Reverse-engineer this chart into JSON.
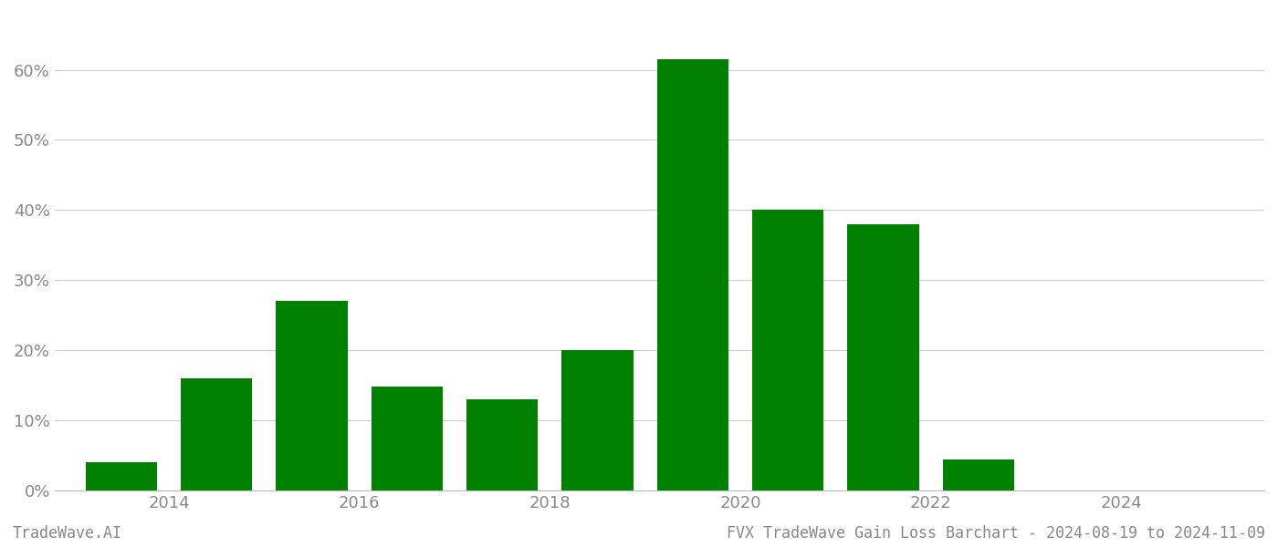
{
  "years": [
    2013,
    2014,
    2015,
    2016,
    2017,
    2018,
    2019,
    2020,
    2021,
    2022,
    2023
  ],
  "values": [
    0.04,
    0.16,
    0.27,
    0.148,
    0.13,
    0.2,
    0.615,
    0.4,
    0.38,
    0.045,
    0.0
  ],
  "bar_color": "#008000",
  "background_color": "#ffffff",
  "grid_color": "#cccccc",
  "tick_label_color": "#888888",
  "yticks": [
    0.0,
    0.1,
    0.2,
    0.3,
    0.4,
    0.5,
    0.6
  ],
  "xticks": [
    2013.5,
    2015.5,
    2017.5,
    2019.5,
    2021.5,
    2023.5
  ],
  "xtick_labels": [
    "2014",
    "2016",
    "2018",
    "2020",
    "2022",
    "2024"
  ],
  "xlim": [
    2012.3,
    2025.0
  ],
  "ylim": [
    0.0,
    0.68
  ],
  "footer_left": "TradeWave.AI",
  "footer_right": "FVX TradeWave Gain Loss Barchart - 2024-08-19 to 2024-11-09",
  "footer_color": "#888888",
  "footer_fontsize": 12,
  "bar_width": 0.75,
  "spine_color": "#bbbbbb"
}
